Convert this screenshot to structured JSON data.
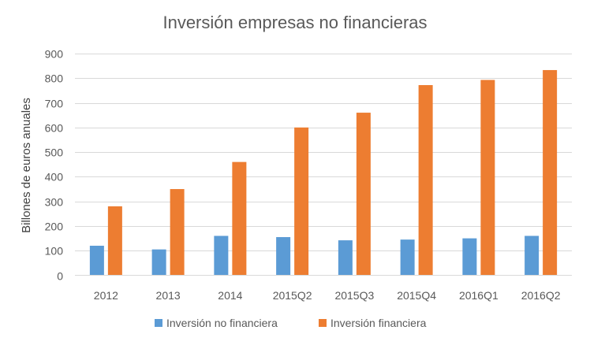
{
  "chart_data": {
    "type": "bar",
    "title": "Inversión empresas no financieras",
    "xlabel": "",
    "ylabel": "Billones de euros anuales",
    "categories": [
      "2012",
      "2013",
      "2014",
      "2015Q2",
      "2015Q3",
      "2015Q4",
      "2016Q1",
      "2016Q2"
    ],
    "series": [
      {
        "name": "Inversión no financiera",
        "color": "#5B9BD5",
        "values": [
          120,
          105,
          160,
          155,
          142,
          145,
          150,
          160
        ]
      },
      {
        "name": "Inversión financiera",
        "color": "#ED7D31",
        "values": [
          280,
          350,
          460,
          600,
          660,
          772,
          793,
          833
        ]
      }
    ],
    "ylim": [
      0,
      900
    ],
    "yticks": [
      0,
      100,
      200,
      300,
      400,
      500,
      600,
      700,
      800,
      900
    ],
    "grid": true,
    "legend": "bottom"
  }
}
